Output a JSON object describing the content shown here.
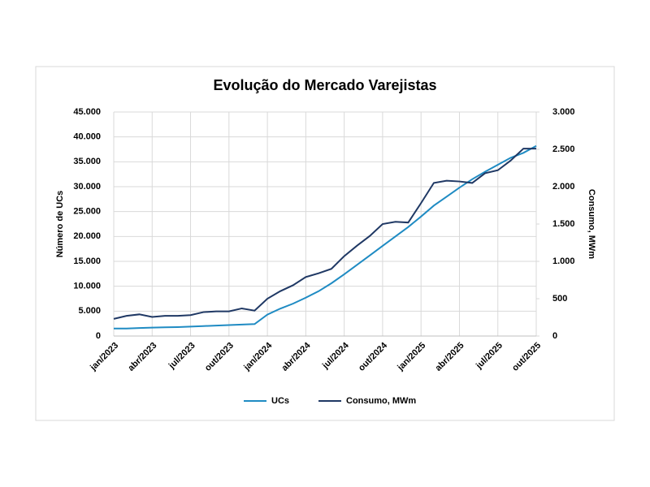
{
  "chart_data": {
    "type": "line",
    "title": "Evolução do Mercado Varejistas",
    "categories": [
      "jan/2023",
      null,
      null,
      "abr/2023",
      null,
      null,
      "jul/2023",
      null,
      null,
      "out/2023",
      null,
      null,
      "jan/2024",
      null,
      null,
      "abr/2024",
      null,
      null,
      "jul/2024",
      null,
      null,
      "out/2024",
      null,
      null,
      "jan/2025",
      null,
      null,
      "abr/2025",
      null,
      null,
      "jul/2025",
      null,
      null,
      "out/2025"
    ],
    "y_label": "Número de UCs",
    "y2_label": "Consumo, MWm",
    "ylim": [
      0,
      45000
    ],
    "yticks": [
      0,
      {
        "value": 5000,
        "label": "5.000"
      },
      {
        "value": 10000,
        "label": "10.000"
      },
      {
        "value": 15000,
        "label": "15.000"
      },
      {
        "value": 20000,
        "label": "20.000"
      },
      {
        "value": 25000,
        "label": "25.000"
      },
      {
        "value": 30000,
        "label": "30.000"
      },
      {
        "value": 35000,
        "label": "35.000"
      },
      {
        "value": 40000,
        "label": "40.000"
      },
      {
        "value": 45000,
        "label": "45.000"
      }
    ],
    "y2lim": [
      0,
      3000
    ],
    "y2ticks": [
      0,
      500,
      {
        "value": 1000,
        "label": "1.000"
      },
      {
        "value": 1500,
        "label": "1.500"
      },
      {
        "value": 2000,
        "label": "2.000"
      },
      {
        "value": 2500,
        "label": "2.500"
      },
      {
        "value": 3000,
        "label": "3.000"
      }
    ],
    "grid": true,
    "legend": "bottom",
    "series": [
      {
        "name": "UCs",
        "color": "#1f8bc3",
        "values": [
          1500,
          1500,
          1600,
          1700,
          1750,
          1800,
          1900,
          2000,
          2100,
          2200,
          2300,
          2400,
          4300,
          5500,
          6500,
          7700,
          9000,
          10600,
          12400,
          14300,
          16200,
          18100,
          20000,
          21900,
          24000,
          26200,
          28000,
          29800,
          31500,
          33000,
          34400,
          35800,
          36800,
          38200
        ]
      },
      {
        "name": "Consumo, MWm",
        "color": "#1f3864",
        "axis": "y2",
        "values": [
          230,
          270,
          290,
          255,
          270,
          270,
          280,
          320,
          330,
          330,
          370,
          340,
          500,
          600,
          680,
          790,
          840,
          900,
          1070,
          1210,
          1340,
          1500,
          1530,
          1520,
          1780,
          2050,
          2080,
          2070,
          2050,
          2180,
          2220,
          2350,
          2510,
          2510
        ]
      }
    ]
  }
}
